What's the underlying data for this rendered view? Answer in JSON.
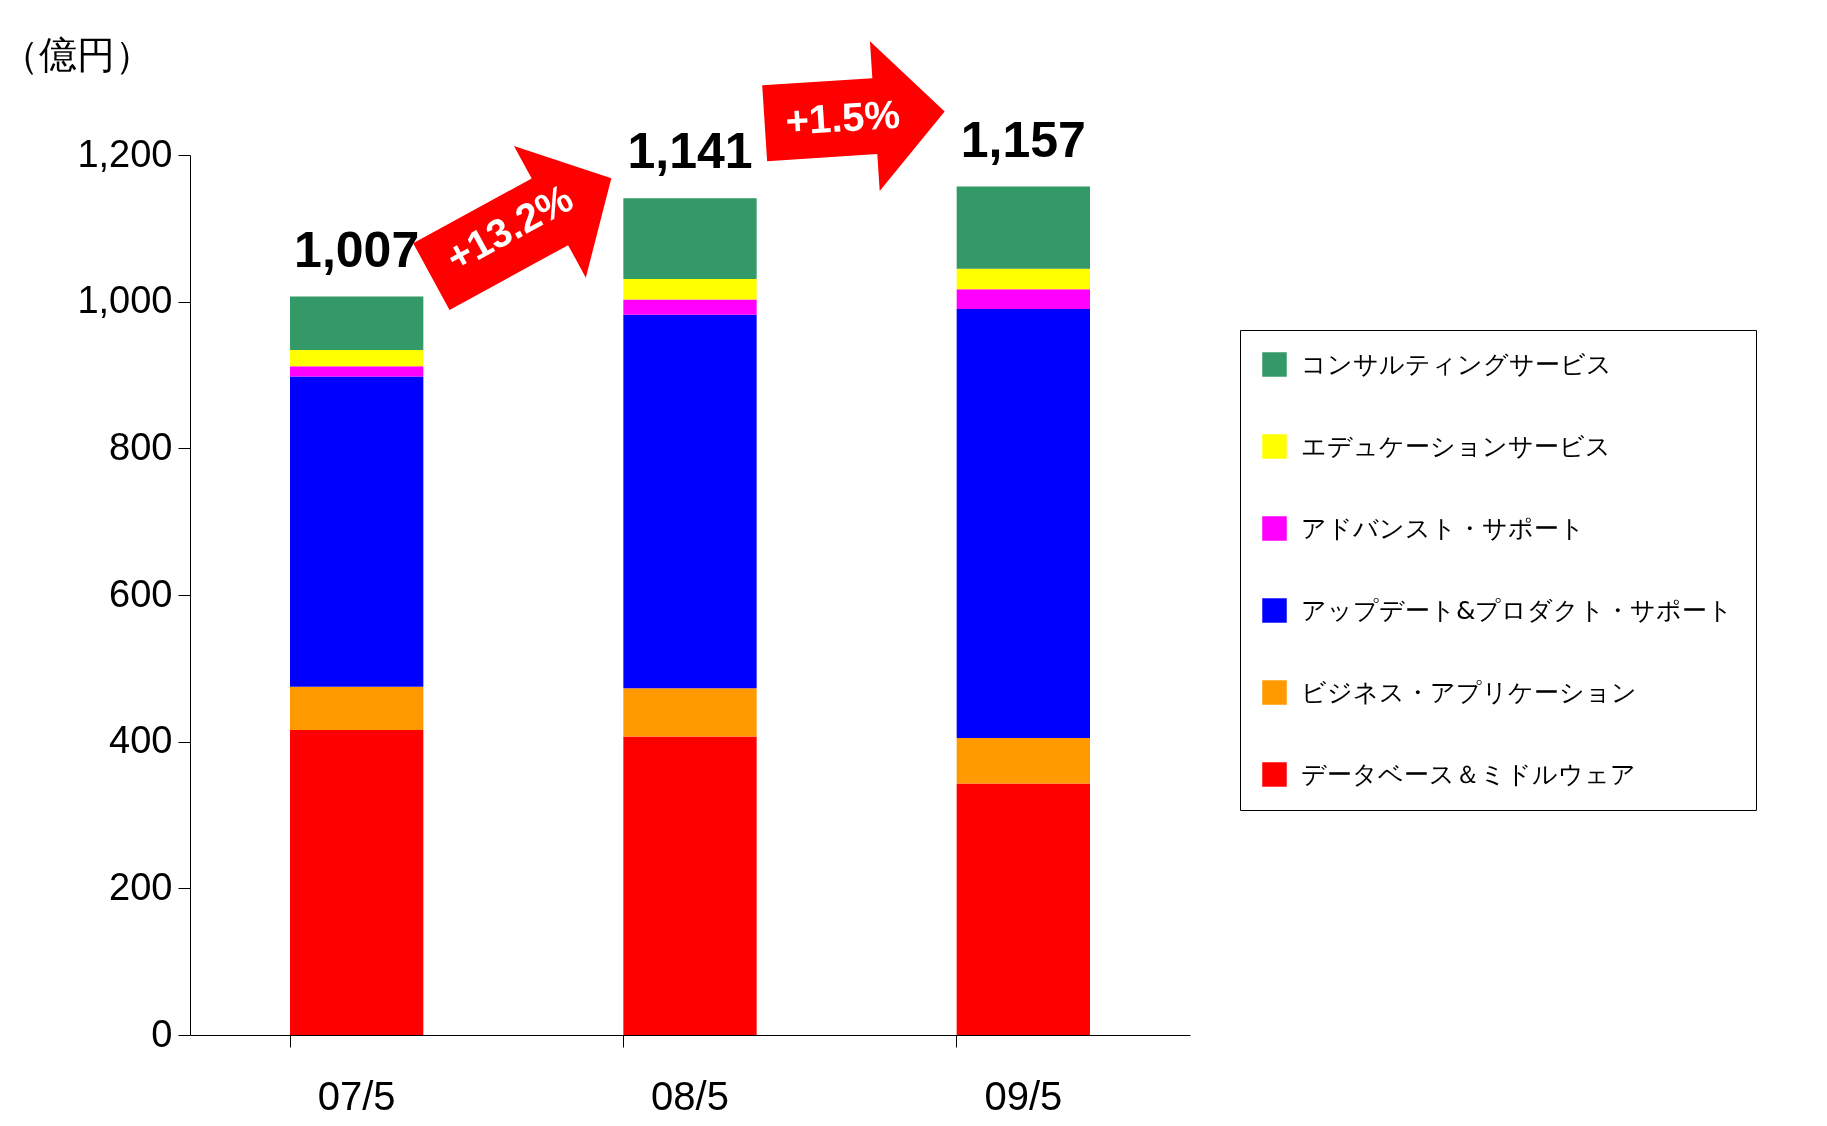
{
  "chart_data": {
    "type": "bar",
    "stacked": true,
    "ylabel": "（億円）",
    "categories": [
      "07/5",
      "08/5",
      "09/5"
    ],
    "series": [
      {
        "name": "データベース＆ミドルウェア",
        "color": "#ff0000",
        "values": [
          416,
          407,
          343
        ]
      },
      {
        "name": "ビジネス・アプリケーション",
        "color": "#ff9900",
        "values": [
          59,
          66,
          62
        ]
      },
      {
        "name": "アップデート&プロダクト・サポート",
        "color": "#0000ff",
        "values": [
          423,
          509,
          585
        ]
      },
      {
        "name": "アドバンスト・サポート",
        "color": "#ff00ff",
        "values": [
          14,
          21,
          27
        ]
      },
      {
        "name": "エデュケーションサービス",
        "color": "#ffff00",
        "values": [
          22,
          28,
          28
        ]
      },
      {
        "name": "コンサルティングサービス",
        "color": "#339966",
        "values": [
          73,
          110,
          112
        ]
      }
    ],
    "totals": [
      "1,007",
      "1,141",
      "1,157"
    ],
    "annotations": [
      "+13.2%",
      "+1.5%"
    ],
    "ylim": [
      0,
      1200
    ],
    "yticks": [
      0,
      200,
      400,
      600,
      800,
      {
        "value": 1000,
        "label": "1,000"
      },
      {
        "value": 1200,
        "label": "1,200"
      }
    ],
    "grid": false,
    "legend": "right"
  }
}
